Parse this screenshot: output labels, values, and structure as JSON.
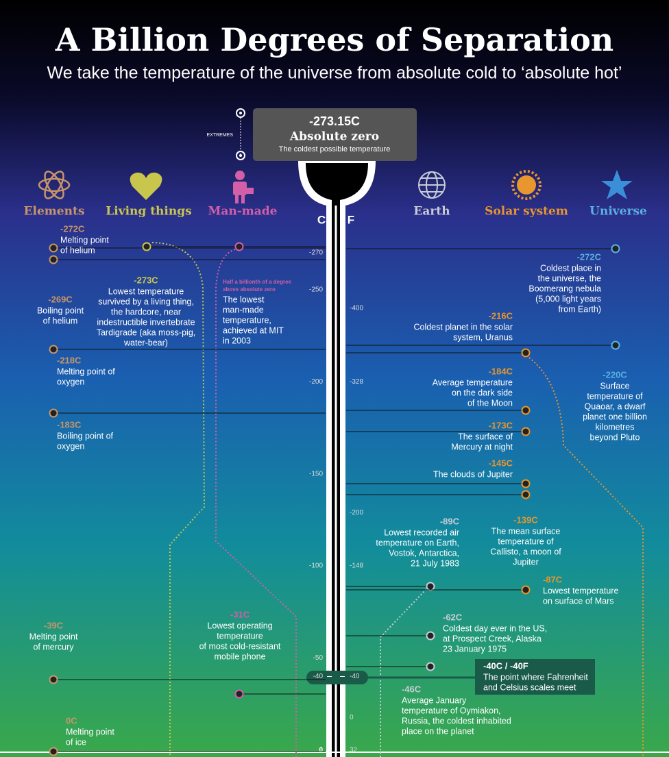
{
  "header": {
    "title": "A Billion Degrees of Separation",
    "subtitle": "We take the temperature of the universe from absolute cold to ‘absolute hot’"
  },
  "extremes": {
    "label": "EXTREMES",
    "temp": "-273.15C",
    "name": "Absolute zero",
    "description": "The coldest possible temperature"
  },
  "categories": [
    "Elements",
    "Living things",
    "Man-made",
    "Earth",
    "Solar system",
    "Universe"
  ],
  "scale": {
    "c_label": "C",
    "f_label": "F",
    "c_ticks": [
      -270,
      -250,
      -200,
      -150,
      -100,
      -50,
      -40,
      0
    ],
    "f_ticks": [
      -400,
      -328,
      -200,
      -148,
      -40,
      0,
      32
    ]
  },
  "items": [
    {
      "temp": "-272C",
      "lines": [
        "Melting point",
        "of helium"
      ]
    },
    {
      "temp": "-269C",
      "lines": [
        "Boiling point",
        "of helium"
      ]
    },
    {
      "temp": "-218C",
      "lines": [
        "Melting point of",
        "oxygen"
      ]
    },
    {
      "temp": "-183C",
      "lines": [
        "Boiling point of",
        "oxygen"
      ]
    },
    {
      "temp": "-39C",
      "lines": [
        "Melting point",
        "of mercury"
      ]
    },
    {
      "temp": "0C",
      "lines": [
        "Melting point",
        "of ice"
      ]
    },
    {
      "temp": "-273C",
      "lines": [
        "Lowest temperature",
        "survived by a living thing,",
        "the hardcore, near",
        "indestructible invertebrate",
        "Tardigrade (aka moss-pig,",
        "water-bear)"
      ]
    },
    {
      "note": [
        "Half a billionth of a degree",
        "above absolute zero"
      ],
      "lines": [
        "The lowest",
        "man-made",
        "temperature,",
        "achieved at MIT",
        "in 2003"
      ]
    },
    {
      "temp": "-31C",
      "lines": [
        "Lowest operating",
        "temperature",
        "of most cold-resistant",
        "mobile phone"
      ]
    },
    {
      "temp": "-272C",
      "lines": [
        "Coldest place in",
        "the universe, the",
        "Boomerang nebula",
        "(5,000 light years",
        "from Earth)"
      ]
    },
    {
      "temp": "-216C",
      "lines": [
        "Coldest planet in the solar",
        "system, Uranus"
      ]
    },
    {
      "temp": "-220C",
      "lines": [
        "Surface",
        "temperature of",
        "Quaoar, a dwarf",
        "planet one billion",
        "kilometres",
        "beyond Pluto"
      ]
    },
    {
      "temp": "-184C",
      "lines": [
        "Average temperature",
        "on the dark side",
        "of the Moon"
      ]
    },
    {
      "temp": "-173C",
      "lines": [
        "The surface of",
        "Mercury at night"
      ]
    },
    {
      "temp": "-145C",
      "lines": [
        "The clouds of Jupiter"
      ]
    },
    {
      "temp": "-139C",
      "lines": [
        "The mean surface",
        "temperature of",
        "Callisto, a moon of",
        "Jupiter"
      ]
    },
    {
      "temp": "-89C",
      "lines": [
        "Lowest recorded air",
        "temperature on Earth,",
        "Vostok, Antarctica,",
        "21 July 1983"
      ]
    },
    {
      "temp": "-87C",
      "lines": [
        "Lowest temperature",
        "on surface of Mars"
      ]
    },
    {
      "temp": "-62C",
      "lines": [
        "Coldest day ever in the US,",
        "at Prospect Creek, Alaska",
        "23 January 1975"
      ]
    },
    {
      "temp": "-40C / -40F",
      "lines": [
        "The point where Fahrenheit",
        "and Celsius scales meet"
      ]
    },
    {
      "temp": "-46C",
      "lines": [
        "Average January",
        "temperature of Oymiakon,",
        "Russia, the coldest inhabited",
        "place on the planet"
      ]
    }
  ]
}
